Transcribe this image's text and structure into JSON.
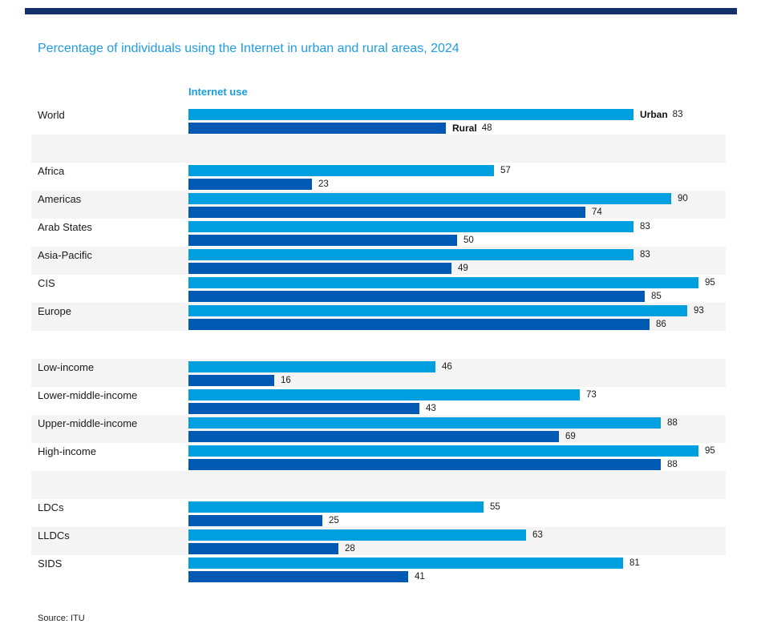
{
  "page": {
    "title": "Percentage of individuals using the Internet in urban and rural areas, 2024",
    "panel_label": "Internet use",
    "source": "Source: ITU"
  },
  "colors": {
    "top_bar": "#14306A",
    "title_blue": "#1F9CE4",
    "panel_label_blue": "#1A9DE3",
    "urban": "#00A0E0",
    "rural": "#0059B3",
    "stripe": "#F4F4F4"
  },
  "chart_data": {
    "type": "bar",
    "orientation": "horizontal",
    "title": "Percentage of individuals using the Internet in urban and rural areas, 2024",
    "panel_label": "Internet use",
    "source": "Source: ITU",
    "xlim": [
      0,
      100
    ],
    "value_labels": true,
    "legend_position": "inline-first-row",
    "categories": [
      "World",
      "Africa",
      "Americas",
      "Arab States",
      "Asia-Pacific",
      "CIS",
      "Europe",
      "Low-income",
      "Lower-middle-income",
      "Upper-middle-income",
      "High-income",
      "LDCs",
      "LLDCs",
      "SIDS"
    ],
    "series": [
      {
        "name": "Urban",
        "color": "#00A0E0",
        "values": [
          83,
          57,
          90,
          83,
          83,
          95,
          93,
          46,
          73,
          88,
          95,
          55,
          63,
          81
        ]
      },
      {
        "name": "Rural",
        "color": "#0059B3",
        "values": [
          48,
          23,
          74,
          50,
          49,
          85,
          86,
          16,
          43,
          69,
          88,
          25,
          28,
          41
        ]
      }
    ],
    "groups": [
      [
        "World"
      ],
      [
        "Africa",
        "Americas",
        "Arab States",
        "Asia-Pacific",
        "CIS",
        "Europe"
      ],
      [
        "Low-income",
        "Lower-middle-income",
        "Upper-middle-income",
        "High-income"
      ],
      [
        "LDCs",
        "LLDCs",
        "SIDS"
      ]
    ]
  },
  "layout_rows": [
    {
      "kind": "row",
      "category": "World",
      "urban": 83,
      "rural": 48,
      "striped": false,
      "show_series_names": true
    },
    {
      "kind": "spacer",
      "striped": true
    },
    {
      "kind": "row",
      "category": "Africa",
      "urban": 57,
      "rural": 23,
      "striped": false
    },
    {
      "kind": "row",
      "category": "Americas",
      "urban": 90,
      "rural": 74,
      "striped": true
    },
    {
      "kind": "row",
      "category": "Arab States",
      "urban": 83,
      "rural": 50,
      "striped": false
    },
    {
      "kind": "row",
      "category": "Asia-Pacific",
      "urban": 83,
      "rural": 49,
      "striped": true
    },
    {
      "kind": "row",
      "category": "CIS",
      "urban": 95,
      "rural": 85,
      "striped": false
    },
    {
      "kind": "row",
      "category": "Europe",
      "urban": 93,
      "rural": 86,
      "striped": true
    },
    {
      "kind": "spacer",
      "striped": false
    },
    {
      "kind": "row",
      "category": "Low-income",
      "urban": 46,
      "rural": 16,
      "striped": true
    },
    {
      "kind": "row",
      "category": "Lower-middle-income",
      "urban": 73,
      "rural": 43,
      "striped": false
    },
    {
      "kind": "row",
      "category": "Upper-middle-income",
      "urban": 88,
      "rural": 69,
      "striped": true
    },
    {
      "kind": "row",
      "category": "High-income",
      "urban": 95,
      "rural": 88,
      "striped": false
    },
    {
      "kind": "spacer",
      "striped": true
    },
    {
      "kind": "row",
      "category": "LDCs",
      "urban": 55,
      "rural": 25,
      "striped": false
    },
    {
      "kind": "row",
      "category": "LLDCs",
      "urban": 63,
      "rural": 28,
      "striped": true
    },
    {
      "kind": "row",
      "category": "SIDS",
      "urban": 81,
      "rural": 41,
      "striped": false
    }
  ]
}
